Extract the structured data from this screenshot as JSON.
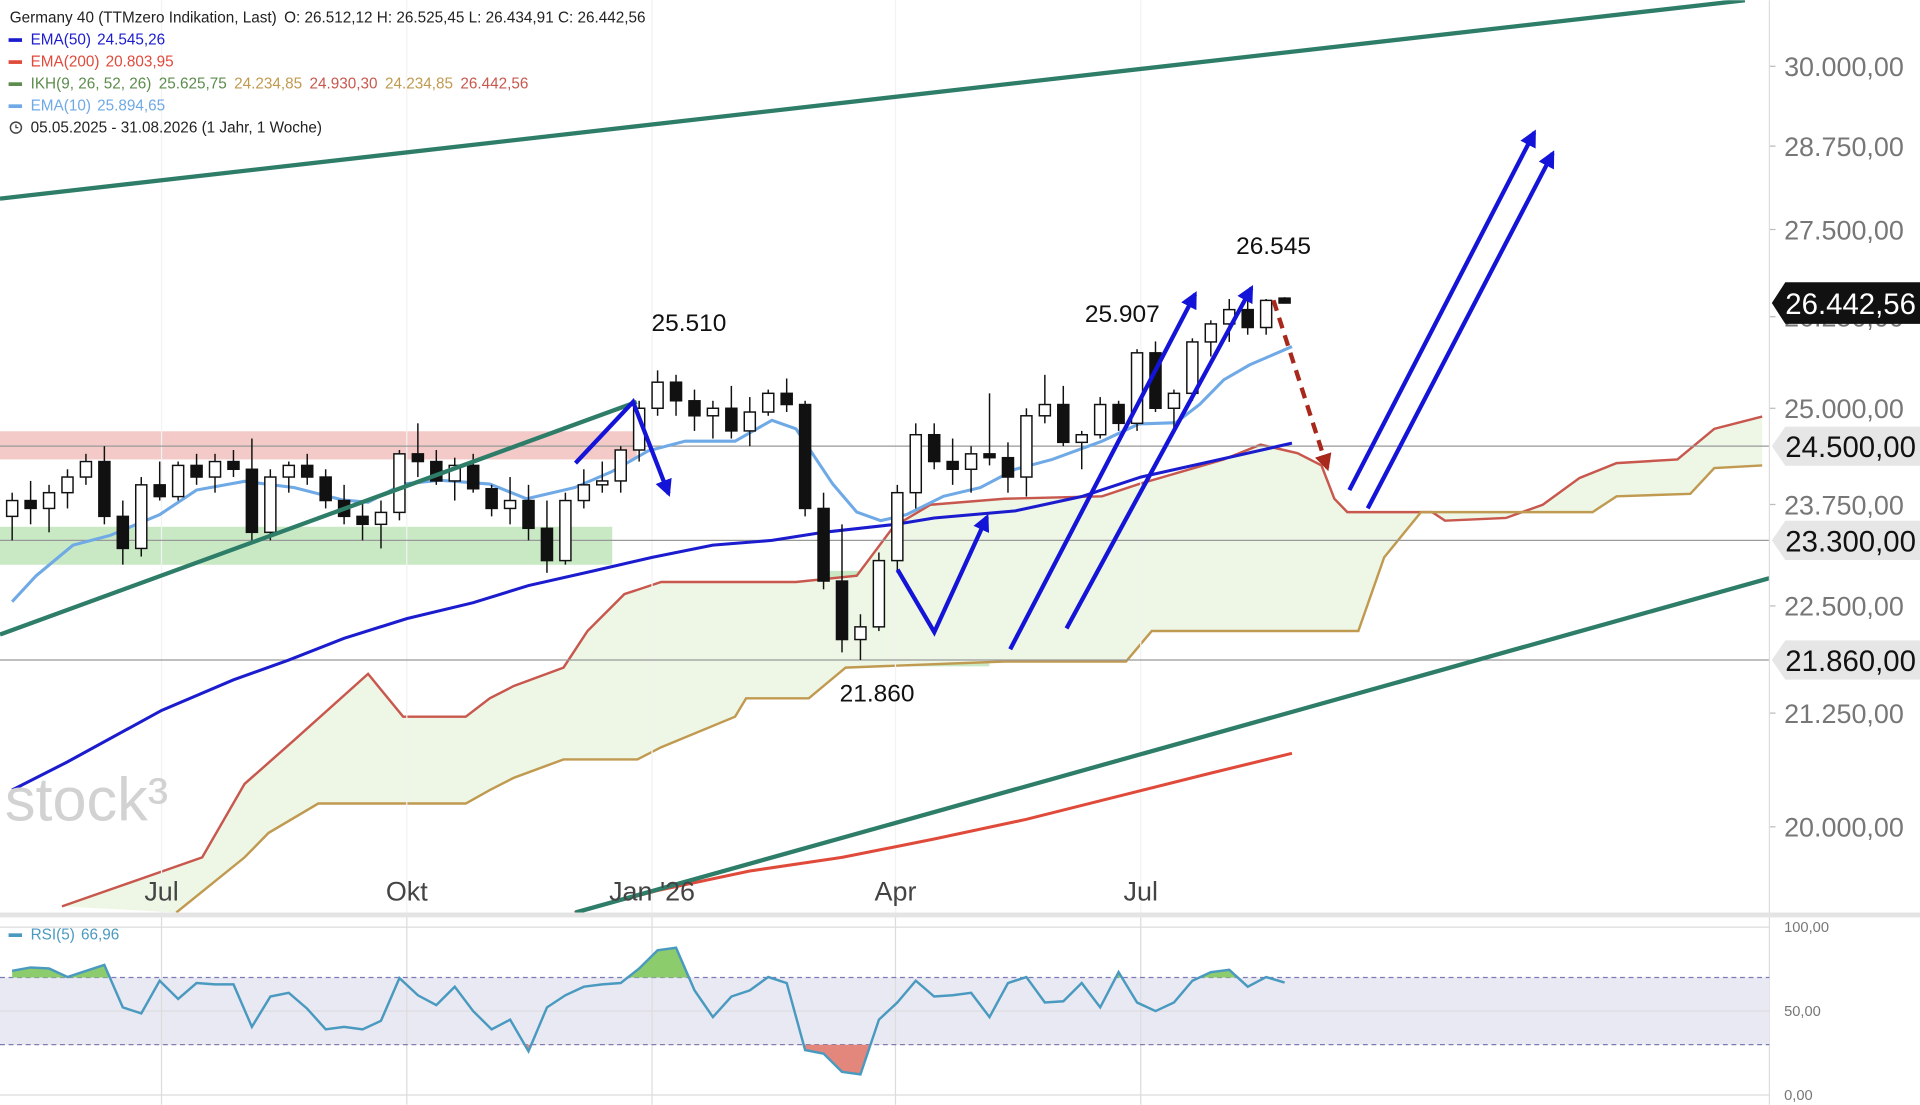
{
  "chart_data": {
    "type": "candlestick",
    "title": "Germany 40 (TTMzero Indikation, Last)",
    "ohlc_label": "O: 26.512,12   H: 26.525,45   L: 26.434,91   C: 26.442,56",
    "date_range": "05.05.2025 - 31.08.2026   (1 Jahr, 1 Woche)",
    "watermark": "stock³",
    "log_scale": true,
    "xlim": [
      -0.66,
      95.29
    ],
    "ylim": [
      19107,
      31075
    ],
    "xticks": [
      {
        "value": 8.1,
        "label": "Jul"
      },
      {
        "value": 21.4,
        "label": "Okt"
      },
      {
        "value": 34.7,
        "label": "Jan '26"
      },
      {
        "value": 47.9,
        "label": "Apr"
      },
      {
        "value": 61.2,
        "label": "Jul"
      }
    ],
    "yticks": [
      {
        "value": 20000,
        "label": "20.000,00"
      },
      {
        "value": 21250,
        "label": "21.250,00"
      },
      {
        "value": 22500,
        "label": "22.500,00"
      },
      {
        "value": 23750,
        "label": "23.750,00"
      },
      {
        "value": 25000,
        "label": "25.000,00"
      },
      {
        "value": 26250,
        "label": "26.250,00"
      },
      {
        "value": 27500,
        "label": "27.500,00"
      },
      {
        "value": 28750,
        "label": "28.750,00"
      },
      {
        "value": 30000,
        "label": "30.000,00"
      }
    ],
    "x": [
      0,
      1,
      2,
      3,
      4,
      5,
      6,
      7,
      8,
      9,
      10,
      11,
      12,
      13,
      14,
      15,
      16,
      17,
      18,
      19,
      20,
      21,
      22,
      23,
      24,
      25,
      26,
      27,
      28,
      29,
      30,
      31,
      32,
      33,
      34,
      35,
      36,
      37,
      38,
      39,
      40,
      41,
      42,
      43,
      44,
      45,
      46,
      47,
      48,
      49,
      50,
      51,
      52,
      53,
      54,
      55,
      56,
      57,
      58,
      59,
      60,
      61,
      62,
      63,
      64,
      65,
      66,
      67,
      68,
      69
    ],
    "ohlc": [
      [
        23600,
        23900,
        23300,
        23800
      ],
      [
        23800,
        24050,
        23500,
        23700
      ],
      [
        23700,
        24000,
        23400,
        23900
      ],
      [
        23900,
        24200,
        23700,
        24100
      ],
      [
        24100,
        24400,
        24000,
        24300
      ],
      [
        24300,
        24500,
        23500,
        23600
      ],
      [
        23600,
        23800,
        23000,
        23200
      ],
      [
        23200,
        24100,
        23100,
        24000
      ],
      [
        24000,
        24300,
        23800,
        23850
      ],
      [
        23850,
        24300,
        23800,
        24250
      ],
      [
        24250,
        24400,
        24000,
        24100
      ],
      [
        24100,
        24400,
        23900,
        24300
      ],
      [
        24300,
        24450,
        24100,
        24200
      ],
      [
        24200,
        24600,
        23300,
        23400
      ],
      [
        23400,
        24200,
        23300,
        24100
      ],
      [
        24100,
        24300,
        23900,
        24250
      ],
      [
        24250,
        24400,
        24000,
        24100
      ],
      [
        24100,
        24200,
        23700,
        23800
      ],
      [
        23800,
        24000,
        23500,
        23600
      ],
      [
        23600,
        23800,
        23300,
        23500
      ],
      [
        23500,
        23800,
        23200,
        23650
      ],
      [
        23650,
        24450,
        23550,
        24400
      ],
      [
        24400,
        24800,
        24100,
        24300
      ],
      [
        24300,
        24450,
        24000,
        24050
      ],
      [
        24050,
        24350,
        23800,
        24250
      ],
      [
        24250,
        24400,
        23900,
        23950
      ],
      [
        23950,
        24000,
        23600,
        23700
      ],
      [
        23700,
        24100,
        23500,
        23800
      ],
      [
        23800,
        24000,
        23300,
        23450
      ],
      [
        23450,
        23800,
        22900,
        23050
      ],
      [
        23050,
        23900,
        23000,
        23800
      ],
      [
        23800,
        24200,
        23700,
        24000
      ],
      [
        24000,
        24300,
        23900,
        24050
      ],
      [
        24050,
        24500,
        23900,
        24450
      ],
      [
        24450,
        25100,
        24300,
        25000
      ],
      [
        25000,
        25510,
        24900,
        25350
      ],
      [
        25350,
        25450,
        24900,
        25100
      ],
      [
        25100,
        25250,
        24700,
        24900
      ],
      [
        24900,
        25100,
        24600,
        25000
      ],
      [
        25000,
        25300,
        24600,
        24700
      ],
      [
        24700,
        25150,
        24500,
        24950
      ],
      [
        24950,
        25250,
        24900,
        25200
      ],
      [
        25200,
        25400,
        24950,
        25050
      ],
      [
        25050,
        25100,
        23600,
        23700
      ],
      [
        23700,
        23900,
        22700,
        22800
      ],
      [
        22800,
        23500,
        21950,
        22100
      ],
      [
        22100,
        22400,
        21860,
        22250
      ],
      [
        22250,
        23150,
        22200,
        23050
      ],
      [
        23050,
        24000,
        22900,
        23900
      ],
      [
        23900,
        24800,
        23700,
        24650
      ],
      [
        24650,
        24800,
        24200,
        24300
      ],
      [
        24300,
        24600,
        24000,
        24200
      ],
      [
        24200,
        24500,
        23900,
        24400
      ],
      [
        24400,
        25200,
        24250,
        24350
      ],
      [
        24350,
        24550,
        23900,
        24100
      ],
      [
        24100,
        25000,
        23850,
        24900
      ],
      [
        24900,
        25450,
        24800,
        25050
      ],
      [
        25050,
        25300,
        24500,
        24550
      ],
      [
        24550,
        24700,
        24200,
        24650
      ],
      [
        24650,
        25150,
        24600,
        25050
      ],
      [
        25050,
        25100,
        24700,
        24800
      ],
      [
        24800,
        25800,
        24700,
        25750
      ],
      [
        25750,
        25907,
        24950,
        25000
      ],
      [
        25000,
        25250,
        24700,
        25200
      ],
      [
        25200,
        25950,
        25100,
        25900
      ],
      [
        25900,
        26200,
        25700,
        26150
      ],
      [
        26150,
        26500,
        25900,
        26350
      ],
      [
        26350,
        26545,
        26000,
        26100
      ],
      [
        26100,
        26500,
        26000,
        26480
      ],
      [
        26512.12,
        26525.45,
        26434.91,
        26442.56
      ]
    ],
    "last_price": {
      "value": 26442.56,
      "label": "26.442,56"
    },
    "levels": [
      {
        "value": 24500,
        "label": "24.500,00"
      },
      {
        "value": 23300,
        "label": "23.300,00"
      },
      {
        "value": 21860,
        "label": "21.860,00"
      }
    ],
    "annotations": [
      {
        "x": 36.7,
        "value": 25510,
        "label": "25.510"
      },
      {
        "x": 60.2,
        "value": 25907,
        "label": "25.907"
      },
      {
        "x": 68.4,
        "value": 26545,
        "label": "26.545"
      },
      {
        "x": 46.9,
        "value": 21860,
        "label": "21.860"
      }
    ],
    "series": [
      {
        "name": "EMA(50)",
        "value_label": "24.545,26",
        "color": "#1c1ccf",
        "x": [
          0,
          3,
          8.1,
          12,
          15,
          18,
          21.4,
          25,
          28,
          31.5,
          34.7,
          38,
          41.2,
          44,
          47.9,
          50,
          54.4,
          58,
          61.2,
          65,
          69.4
        ],
        "values": [
          20396,
          20704,
          21280,
          21630,
          21860,
          22114,
          22348,
          22538,
          22745,
          22923,
          23089,
          23240,
          23300,
          23400,
          23500,
          23580,
          23670,
          23850,
          24100,
          24300,
          24540
        ]
      },
      {
        "name": "EMA(200)",
        "value_label": "20.803,95",
        "color": "#e04a3a",
        "x": [
          30.5,
          35,
          40,
          45,
          50,
          55,
          60,
          65,
          69.4
        ],
        "values": [
          19107,
          19333,
          19535,
          19676,
          19870,
          20080,
          20330,
          20580,
          20800
        ]
      },
      {
        "name": "EMA(10)",
        "value_label": "25.894,65",
        "color": "#6fa9e6",
        "x": [
          0,
          1.3,
          3.3,
          5.3,
          8,
          10,
          12.6,
          15.3,
          17.9,
          19.3,
          21.2,
          23.2,
          25.9,
          27.9,
          30.5,
          32.5,
          34.5,
          36.5,
          39.2,
          41.2,
          42.5,
          44.5,
          45.8,
          47.1,
          48.5,
          50.5,
          52.5,
          54.4,
          56.4,
          59.1,
          61.1,
          63.1,
          64.4,
          65.7,
          67.1,
          69.4
        ],
        "values": [
          22550,
          22864,
          23240,
          23361,
          23621,
          23933,
          24044,
          23965,
          23808,
          23777,
          24010,
          24059,
          24010,
          23823,
          23965,
          24168,
          24440,
          24565,
          24565,
          24841,
          24727,
          24010,
          23654,
          23546,
          23621,
          23854,
          23965,
          24200,
          24328,
          24565,
          24793,
          24808,
          25052,
          25382,
          25584,
          25836
        ]
      }
    ],
    "ikh": {
      "name": "IKH(9, 26, 52, 26)",
      "color": "#5c8c4c",
      "fill": "#eef7e6",
      "value_labels": [
        {
          "text": "25.625,75",
          "color": "#5c8c4c"
        },
        {
          "text": "24.234,85",
          "color": "#c09a50"
        },
        {
          "text": "24.930,30",
          "color": "#c8574e"
        },
        {
          "text": "24.234,85",
          "color": "#c09a50"
        },
        {
          "text": "26.442,56",
          "color": "#c8574e"
        }
      ],
      "span_a": {
        "color": "#c8574e",
        "x": [
          2.7,
          10.3,
          12.6,
          15.3,
          19.3,
          21.2,
          24.6,
          25.9,
          27.2,
          29.9,
          31.2,
          33.2,
          35.2,
          42.5,
          45.8,
          47.8,
          49.8,
          53.8,
          59.1,
          61.1,
          65.7,
          67.7,
          69.7,
          71.0,
          71.7,
          72.4,
          77.0,
          77.7,
          81.0,
          83.0,
          85.0,
          87.0,
          90.3,
          92.3,
          94.9
        ],
        "values": [
          19170,
          19676,
          20462,
          20948,
          21700,
          21210,
          21210,
          21418,
          21560,
          21772,
          22201,
          22641,
          22788,
          22788,
          22864,
          23473,
          23747,
          23823,
          23854,
          24010,
          24328,
          24520,
          24408,
          24249,
          23823,
          23654,
          23654,
          23546,
          23580,
          23747,
          24089,
          24280,
          24328,
          24727,
          24890
        ]
      },
      "span_b": {
        "color": "#c09a50",
        "x": [
          8.9,
          12.6,
          13.9,
          16.6,
          24.6,
          25.9,
          27.2,
          29.9,
          33.9,
          35.2,
          39.2,
          39.8,
          43.2,
          45.2,
          53.8,
          60.4,
          61.8,
          73.0,
          74.4,
          76.4,
          85.7,
          87.0,
          91.0,
          92.3,
          94.9
        ],
        "values": [
          19107,
          19676,
          19935,
          20250,
          20250,
          20396,
          20529,
          20731,
          20731,
          20867,
          21210,
          21418,
          21418,
          21772,
          21843,
          21843,
          22201,
          22201,
          23089,
          23654,
          23654,
          23854,
          23885,
          24217,
          24249
        ]
      }
    },
    "rsi": {
      "name": "RSI(5)",
      "value_label": "66,96",
      "color": "#4a9ac0",
      "ylim": [
        -5.8,
        105.8
      ],
      "yticks": [
        {
          "value": 0,
          "label": "0,00"
        },
        {
          "value": 50,
          "label": "50,00"
        },
        {
          "value": 100,
          "label": "100,00"
        }
      ],
      "bands": [
        30,
        70
      ],
      "values": [
        74.0,
        76.0,
        75.4,
        70.3,
        73.9,
        77.5,
        52.2,
        48.6,
        68.1,
        57.2,
        66.7,
        65.9,
        65.9,
        40.6,
        58.7,
        60.9,
        51.4,
        39.1,
        40.6,
        39.1,
        44.2,
        69.6,
        59.4,
        53.6,
        64.5,
        50.0,
        39.1,
        44.9,
        26.1,
        52.2,
        59.4,
        64.5,
        65.9,
        66.7,
        75.4,
        86.2,
        87.7,
        62.3,
        46.4,
        58.7,
        62.3,
        70.3,
        66.7,
        26.8,
        24.6,
        13.8,
        12.3,
        44.9,
        55.1,
        68.1,
        58.7,
        59.4,
        60.9,
        46.4,
        66.7,
        70.3,
        55.1,
        55.8,
        66.7,
        52.2,
        73.2,
        55.1,
        50.0,
        55.1,
        68.1,
        73.2,
        74.6,
        64.5,
        70.3,
        66.96
      ]
    }
  }
}
